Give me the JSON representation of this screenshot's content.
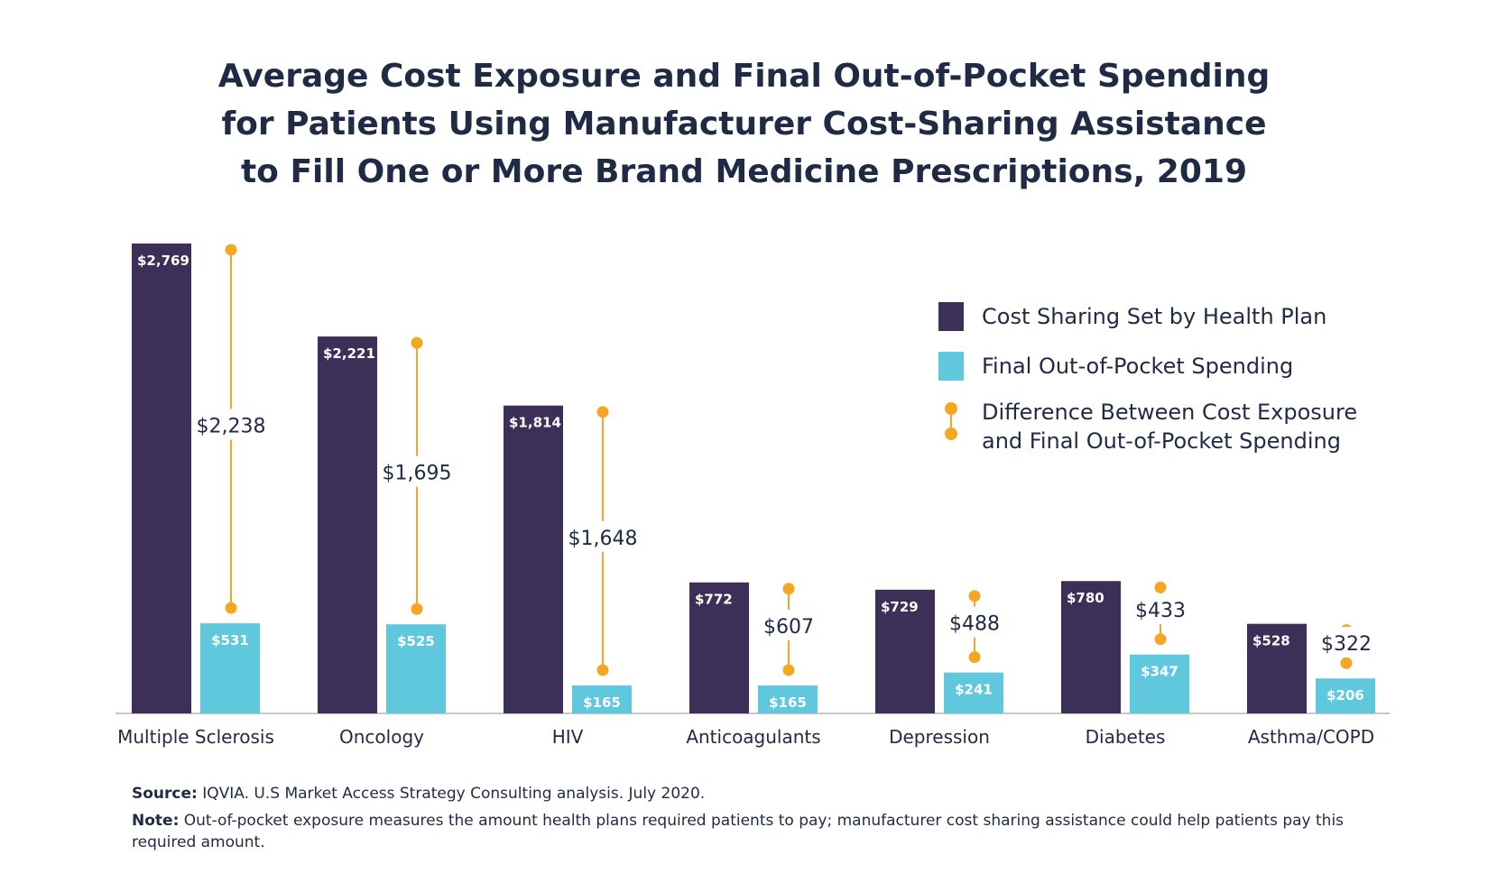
{
  "title": {
    "line1": "Average Cost Exposure and Final Out-of-Pocket Spending",
    "line2": "for Patients Using Manufacturer Cost-Sharing Assistance",
    "line3": "to Fill One or More Brand Medicine Prescriptions, 2019"
  },
  "colors": {
    "cost_sharing": "#3d3058",
    "final_oop": "#5fc8dc",
    "difference": "#f5a623",
    "axis": "#c8c8c8",
    "text": "#1f2a44"
  },
  "legend": {
    "cost_sharing": "Cost Sharing Set by Health Plan",
    "final_oop": "Final Out-of-Pocket Spending",
    "difference_line1": "Difference Between Cost Exposure",
    "difference_line2": "and Final Out-of-Pocket Spending"
  },
  "chart_data": {
    "type": "bar",
    "categories": [
      "Multiple Sclerosis",
      "Oncology",
      "HIV",
      "Anticoagulants",
      "Depression",
      "Diabetes",
      "Asthma/COPD"
    ],
    "series": [
      {
        "name": "Cost Sharing Set by Health Plan",
        "values": [
          2769,
          2221,
          1814,
          772,
          729,
          780,
          528
        ],
        "labels": [
          "$2,769",
          "$2,221",
          "$1,814",
          "$772",
          "$729",
          "$780",
          "$528"
        ]
      },
      {
        "name": "Final Out-of-Pocket Spending",
        "values": [
          531,
          525,
          165,
          165,
          241,
          347,
          206
        ],
        "labels": [
          "$531",
          "$525",
          "$165",
          "$165",
          "$241",
          "$347",
          "$206"
        ]
      },
      {
        "name": "Difference Between Cost Exposure and Final Out-of-Pocket Spending",
        "values": [
          2238,
          1695,
          1648,
          607,
          488,
          433,
          322
        ],
        "labels": [
          "$2,238",
          "$1,695",
          "$1,648",
          "$607",
          "$488",
          "$433",
          "$322"
        ]
      }
    ],
    "ylim": [
      0,
      2769
    ],
    "legend_position": "right",
    "grid": false
  },
  "footer": {
    "source_label": "Source:",
    "source_text": " IQVIA. U.S Market Access Strategy Consulting analysis. July 2020.",
    "note_label": "Note:",
    "note_text": " Out-of-pocket exposure measures the amount health plans required patients to pay; manufacturer cost sharing assistance could help patients pay this required amount."
  }
}
